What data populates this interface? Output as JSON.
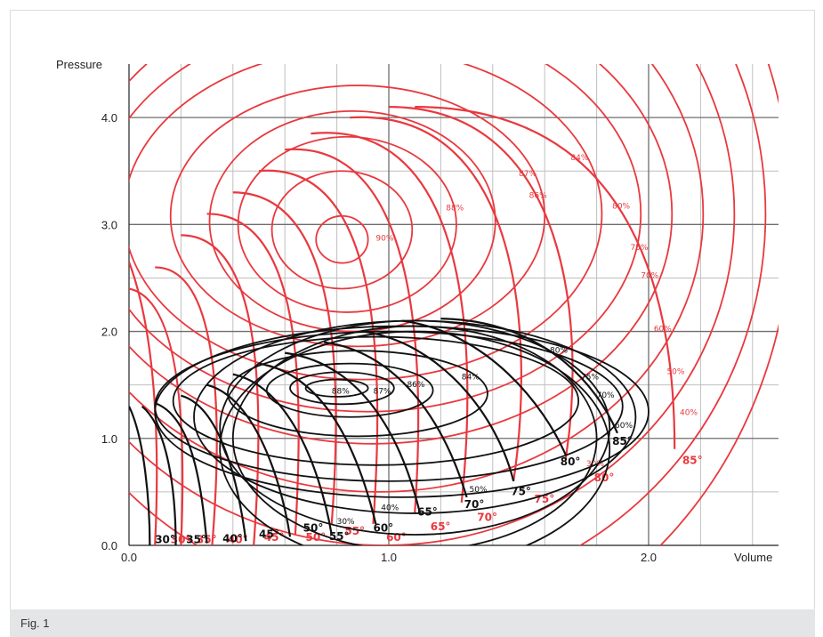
{
  "figure": {
    "caption": "Fig. 1"
  },
  "colors": {
    "red": "#e8393f",
    "black": "#111111",
    "grid": "#bfbfbf",
    "major_grid": "#6e6e6e"
  },
  "chart_data": {
    "type": "line",
    "xlabel": "Volume",
    "ylabel": "Pressure",
    "xlim": [
      0,
      2.5
    ],
    "ylim": [
      0,
      4.5
    ],
    "x_ticks": [
      {
        "v": 0,
        "label": "0.0"
      },
      {
        "v": 1,
        "label": "1.0"
      },
      {
        "v": 2,
        "label": "2.0"
      }
    ],
    "y_ticks": [
      {
        "v": 0,
        "label": "0.0"
      },
      {
        "v": 1,
        "label": "1.0"
      },
      {
        "v": 2,
        "label": "2.0"
      },
      {
        "v": 3,
        "label": "3.0"
      },
      {
        "v": 4,
        "label": "4.0"
      }
    ],
    "minor_x": [
      0.2,
      0.4,
      0.6,
      0.8,
      1.2,
      1.4,
      1.6,
      1.8,
      2.2,
      2.4
    ],
    "minor_y": [
      0.5,
      1.5,
      2.5,
      3.5
    ],
    "grid": true,
    "series": [
      {
        "color": "red",
        "efficiency_contours": [
          {
            "label": "90%",
            "center": [
              0.82,
              2.86
            ],
            "rx": 0.1,
            "ry": 0.22,
            "label_at": [
              0.95,
              2.85
            ]
          },
          {
            "label": "88%",
            "center": [
              0.82,
              2.95
            ],
            "rx": 0.27,
            "ry": 0.55,
            "label_at": [
              1.22,
              3.13
            ]
          },
          {
            "label": "87%",
            "center": [
              0.84,
              3.0
            ],
            "rx": 0.42,
            "ry": 0.82,
            "label_at": [
              1.5,
              3.45
            ]
          },
          {
            "label": "86%",
            "center": [
              0.86,
              3.03
            ],
            "rx": 0.55,
            "ry": 1.03,
            "label_at": [
              1.54,
              3.25
            ]
          },
          {
            "label": "84%",
            "center": [
              0.88,
              3.08
            ],
            "rx": 0.72,
            "ry": 1.22,
            "label_at": [
              1.7,
              3.6
            ]
          },
          {
            "label": "80%",
            "center": [
              0.9,
              3.1
            ],
            "rx": 0.92,
            "ry": 1.55,
            "label_at": [
              1.86,
              3.15
            ]
          },
          {
            "label": "75%",
            "center": [
              0.92,
              3.1
            ],
            "rx": 1.05,
            "ry": 1.85,
            "label_at": [
              1.93,
              2.76
            ]
          },
          {
            "label": "70%",
            "center": [
              0.94,
              3.1
            ],
            "rx": 1.15,
            "ry": 2.15,
            "label_at": [
              1.97,
              2.5
            ]
          },
          {
            "label": "60%",
            "center": [
              0.96,
              3.1
            ],
            "rx": 1.25,
            "ry": 2.6,
            "label_at": [
              2.02,
              2.0
            ]
          },
          {
            "label": "50%",
            "center": [
              0.98,
              3.1
            ],
            "rx": 1.35,
            "ry": 3.1,
            "label_at": [
              2.07,
              1.6
            ]
          },
          {
            "label": "40%",
            "center": [
              1.0,
              3.1
            ],
            "rx": 1.45,
            "ry": 3.6,
            "label_at": [
              2.12,
              1.22
            ]
          },
          {
            "label": "30%",
            "center": [
              1.0,
              3.1
            ],
            "rx": 1.55,
            "ry": 4.2,
            "label_at": [
              1.76,
              0.74
            ]
          }
        ],
        "speed_curves": [
          {
            "label": "30°",
            "ctrl": [
              [
                0.0,
                2.65
              ],
              [
                0.1,
                2.0
              ],
              [
                0.12,
                1.0
              ],
              [
                0.1,
                0.0
              ]
            ]
          },
          {
            "label": "35°",
            "ctrl": [
              [
                0.0,
                2.4
              ],
              [
                0.2,
                2.3
              ],
              [
                0.22,
                1.1
              ],
              [
                0.2,
                0.0
              ]
            ]
          },
          {
            "label": "40°",
            "ctrl": [
              [
                0.1,
                2.6
              ],
              [
                0.35,
                2.6
              ],
              [
                0.36,
                1.2
              ],
              [
                0.32,
                0.0
              ]
            ]
          },
          {
            "label": "45°",
            "ctrl": [
              [
                0.2,
                2.9
              ],
              [
                0.52,
                2.9
              ],
              [
                0.52,
                1.3
              ],
              [
                0.48,
                0.0
              ]
            ]
          },
          {
            "label": "50°",
            "ctrl": [
              [
                0.3,
                3.1
              ],
              [
                0.68,
                3.1
              ],
              [
                0.67,
                1.4
              ],
              [
                0.64,
                0.1
              ]
            ]
          },
          {
            "label": "55°",
            "ctrl": [
              [
                0.4,
                3.3
              ],
              [
                0.82,
                3.3
              ],
              [
                0.82,
                1.5
              ],
              [
                0.78,
                0.2
              ]
            ]
          },
          {
            "label": "60°",
            "ctrl": [
              [
                0.5,
                3.5
              ],
              [
                0.98,
                3.6
              ],
              [
                0.98,
                1.6
              ],
              [
                0.94,
                0.2
              ]
            ]
          },
          {
            "label": "65°",
            "ctrl": [
              [
                0.6,
                3.7
              ],
              [
                1.12,
                3.8
              ],
              [
                1.14,
                1.7
              ],
              [
                1.1,
                0.3
              ]
            ]
          },
          {
            "label": "70°",
            "ctrl": [
              [
                0.7,
                3.85
              ],
              [
                1.32,
                4.0
              ],
              [
                1.34,
                1.8
              ],
              [
                1.28,
                0.4
              ]
            ]
          },
          {
            "label": "75°",
            "ctrl": [
              [
                0.85,
                4.0
              ],
              [
                1.52,
                4.1
              ],
              [
                1.56,
                1.9
              ],
              [
                1.48,
                0.6
              ]
            ]
          },
          {
            "label": "80°",
            "ctrl": [
              [
                1.0,
                4.1
              ],
              [
                1.7,
                4.1
              ],
              [
                1.76,
                2.0
              ],
              [
                1.68,
                0.8
              ]
            ]
          },
          {
            "label": "85°",
            "ctrl": [
              [
                1.1,
                4.1
              ],
              [
                1.9,
                4.1
              ],
              [
                2.1,
                2.5
              ],
              [
                2.1,
                0.9
              ]
            ]
          }
        ],
        "speed_labels": [
          {
            "label": "30°",
            "at": [
              0.16,
              0.02
            ]
          },
          {
            "label": "35°",
            "at": [
              0.26,
              0.02
            ]
          },
          {
            "label": "40°",
            "at": [
              0.38,
              0.02
            ]
          },
          {
            "label": "45°",
            "at": [
              0.52,
              0.04
            ]
          },
          {
            "label": "50°",
            "at": [
              0.68,
              0.04
            ]
          },
          {
            "label": "55°",
            "at": [
              0.83,
              0.1
            ]
          },
          {
            "label": "60°",
            "at": [
              0.99,
              0.04
            ]
          },
          {
            "label": "65°",
            "at": [
              1.16,
              0.14
            ]
          },
          {
            "label": "70°",
            "at": [
              1.34,
              0.23
            ]
          },
          {
            "label": "75°",
            "at": [
              1.56,
              0.4
            ]
          },
          {
            "label": "80°",
            "at": [
              1.79,
              0.6
            ]
          },
          {
            "label": "85°",
            "at": [
              2.13,
              0.76
            ]
          }
        ]
      },
      {
        "color": "black",
        "efficiency_contours": [
          {
            "label": "88%",
            "center": [
              0.8,
              1.47
            ],
            "rx": 0.12,
            "ry": 0.08,
            "label_at": [
              0.78,
              1.42
            ]
          },
          {
            "label": "87%",
            "center": [
              0.82,
              1.47
            ],
            "rx": 0.2,
            "ry": 0.15,
            "label_at": [
              0.94,
              1.42
            ]
          },
          {
            "label": "86%",
            "center": [
              0.85,
              1.45
            ],
            "rx": 0.32,
            "ry": 0.25,
            "label_at": [
              1.07,
              1.48
            ]
          },
          {
            "label": "84%",
            "center": [
              0.88,
              1.42
            ],
            "rx": 0.5,
            "ry": 0.4,
            "label_at": [
              1.28,
              1.55
            ]
          },
          {
            "label": "80%",
            "center": [
              0.95,
              1.35
            ],
            "rx": 0.78,
            "ry": 0.6,
            "label_at": [
              1.62,
              1.8
            ]
          },
          {
            "label": "75%",
            "center": [
              1.0,
              1.3
            ],
            "rx": 0.9,
            "ry": 0.7,
            "label_at": [
              1.74,
              1.55
            ]
          },
          {
            "label": "70%",
            "center": [
              1.05,
              1.25
            ],
            "rx": 0.95,
            "ry": 0.8,
            "label_at": [
              1.8,
              1.38
            ]
          },
          {
            "label": "60%",
            "center": [
              1.1,
              1.2
            ],
            "rx": 0.85,
            "ry": 0.9,
            "label_at": [
              1.87,
              1.1
            ]
          },
          {
            "label": "50%",
            "center": [
              1.1,
              1.1
            ],
            "rx": 0.75,
            "ry": 1.0,
            "label_at": [
              1.31,
              0.5
            ]
          },
          {
            "label": "40%",
            "center": [
              1.1,
              1.0
            ],
            "rx": 0.7,
            "ry": 1.05,
            "label_at": [
              0.97,
              0.33
            ]
          },
          {
            "label": "30%",
            "center": [
              1.1,
              0.9
            ],
            "rx": 0.75,
            "ry": 1.1,
            "label_at": [
              0.8,
              0.2
            ]
          }
        ],
        "speed_curves": [
          {
            "label": "30°",
            "ctrl": [
              [
                0.0,
                1.3
              ],
              [
                0.06,
                1.0
              ],
              [
                0.08,
                0.4
              ],
              [
                0.08,
                0.0
              ]
            ]
          },
          {
            "label": "35°",
            "ctrl": [
              [
                0.05,
                1.3
              ],
              [
                0.15,
                1.1
              ],
              [
                0.18,
                0.5
              ],
              [
                0.18,
                0.0
              ]
            ]
          },
          {
            "label": "40°",
            "ctrl": [
              [
                0.1,
                1.33
              ],
              [
                0.25,
                1.2
              ],
              [
                0.28,
                0.5
              ],
              [
                0.3,
                0.02
              ]
            ]
          },
          {
            "label": "45°",
            "ctrl": [
              [
                0.2,
                1.4
              ],
              [
                0.35,
                1.3
              ],
              [
                0.42,
                0.6
              ],
              [
                0.45,
                0.04
              ]
            ]
          },
          {
            "label": "50°",
            "ctrl": [
              [
                0.3,
                1.5
              ],
              [
                0.47,
                1.4
              ],
              [
                0.58,
                0.7
              ],
              [
                0.62,
                0.08
              ]
            ]
          },
          {
            "label": "55°",
            "ctrl": [
              [
                0.4,
                1.6
              ],
              [
                0.6,
                1.5
              ],
              [
                0.73,
                0.8
              ],
              [
                0.78,
                0.1
              ]
            ]
          },
          {
            "label": "60°",
            "ctrl": [
              [
                0.5,
                1.7
              ],
              [
                0.75,
                1.6
              ],
              [
                0.88,
                0.9
              ],
              [
                0.95,
                0.2
              ]
            ]
          },
          {
            "label": "65°",
            "ctrl": [
              [
                0.6,
                1.8
              ],
              [
                0.9,
                1.7
              ],
              [
                1.05,
                1.0
              ],
              [
                1.12,
                0.3
              ]
            ]
          },
          {
            "label": "70°",
            "ctrl": [
              [
                0.75,
                1.9
              ],
              [
                1.05,
                1.8
              ],
              [
                1.22,
                1.1
              ],
              [
                1.3,
                0.45
              ]
            ]
          },
          {
            "label": "75°",
            "ctrl": [
              [
                0.9,
                2.0
              ],
              [
                1.2,
                1.9
              ],
              [
                1.42,
                1.2
              ],
              [
                1.48,
                0.6
              ]
            ]
          },
          {
            "label": "80°",
            "ctrl": [
              [
                1.05,
                2.1
              ],
              [
                1.38,
                2.0
              ],
              [
                1.6,
                1.3
              ],
              [
                1.68,
                0.85
              ]
            ]
          },
          {
            "label": "85°",
            "ctrl": [
              [
                1.2,
                2.12
              ],
              [
                1.6,
                2.1
              ],
              [
                1.8,
                1.5
              ],
              [
                1.88,
                1.05
              ]
            ]
          }
        ],
        "speed_labels": [
          {
            "label": "30°",
            "at": [
              0.1,
              0.02
            ]
          },
          {
            "label": "35°",
            "at": [
              0.22,
              0.02
            ]
          },
          {
            "label": "40°",
            "at": [
              0.36,
              0.03
            ]
          },
          {
            "label": "45°",
            "at": [
              0.5,
              0.07
            ]
          },
          {
            "label": "50°",
            "at": [
              0.67,
              0.13
            ]
          },
          {
            "label": "55°",
            "at": [
              0.77,
              0.05
            ]
          },
          {
            "label": "60°",
            "at": [
              0.94,
              0.13
            ]
          },
          {
            "label": "65°",
            "at": [
              1.11,
              0.28
            ]
          },
          {
            "label": "70°",
            "at": [
              1.29,
              0.35
            ]
          },
          {
            "label": "75°",
            "at": [
              1.47,
              0.47
            ]
          },
          {
            "label": "80°",
            "at": [
              1.66,
              0.75
            ]
          },
          {
            "label": "85°",
            "at": [
              1.86,
              0.94
            ]
          }
        ]
      }
    ]
  }
}
